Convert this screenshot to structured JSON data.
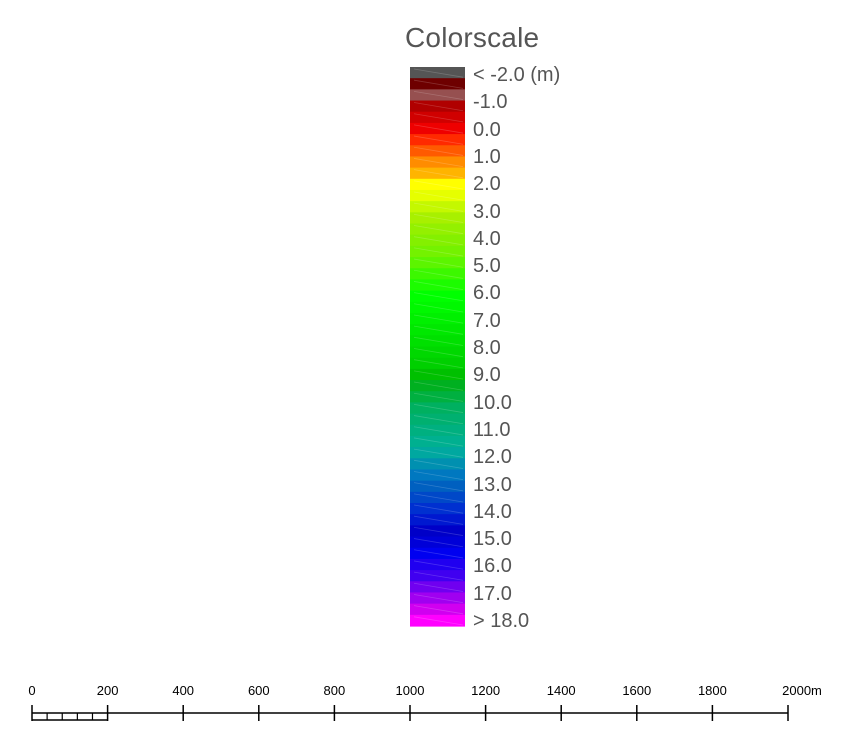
{
  "legend": {
    "title": "Colorscale",
    "swatches": [
      "#555555",
      "#6e0000",
      "#965050",
      "#b00000",
      "#d00000",
      "#ee0000",
      "#ff2a00",
      "#ff5a00",
      "#ff8c00",
      "#ffb400",
      "#ffff00",
      "#e6ff00",
      "#c4f800",
      "#a8f000",
      "#94f000",
      "#84f000",
      "#74f200",
      "#5cf500",
      "#3cf800",
      "#1cfc00",
      "#00ff00",
      "#00f800",
      "#00f000",
      "#00e800",
      "#00e000",
      "#00d800",
      "#00d000",
      "#00c000",
      "#00b020",
      "#00b040",
      "#00b060",
      "#00b070",
      "#00b080",
      "#00b090",
      "#00a8a0",
      "#0090b0",
      "#0078c0",
      "#0060c0",
      "#0048c8",
      "#0030d0",
      "#0018d0",
      "#0000c8",
      "#0000d8",
      "#0000f0",
      "#2000f0",
      "#4000f0",
      "#7000f0",
      "#a000f0",
      "#d000f0",
      "#ff00ff"
    ],
    "labels": [
      "< -2.0 (m)",
      "-1.0",
      "0.0",
      "1.0",
      "2.0",
      "3.0",
      "4.0",
      "5.0",
      "6.0",
      "7.0",
      "8.0",
      "9.0",
      "10.0",
      "11.0",
      "12.0",
      "13.0",
      "14.0",
      "15.0",
      "16.0",
      "17.0",
      "> 18.0"
    ]
  },
  "scale_bar": {
    "ticks": [
      "0",
      "200",
      "400",
      "600",
      "800",
      "1000",
      "1200",
      "1400",
      "1600",
      "1800",
      "2000m"
    ]
  }
}
